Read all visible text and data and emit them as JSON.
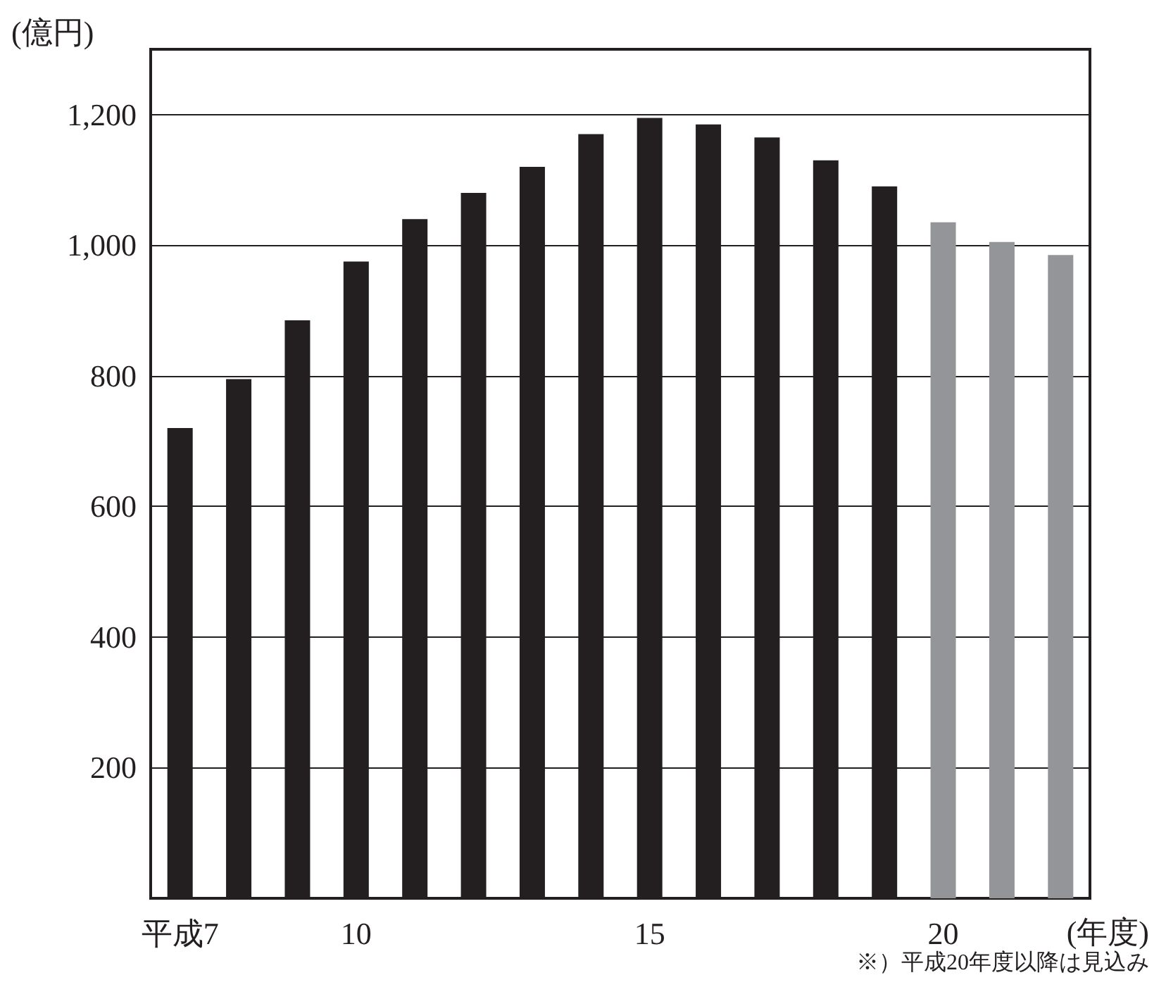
{
  "chart_data": {
    "type": "bar",
    "ylabel": "(億円)",
    "xlabel": "(年度)",
    "annotations": [
      "※）平成20年度以降は見込み"
    ],
    "categories": [
      "平成7",
      null,
      null,
      "10",
      null,
      null,
      null,
      null,
      "15",
      null,
      null,
      null,
      null,
      "20",
      null,
      null
    ],
    "values": [
      720,
      795,
      885,
      975,
      1040,
      1080,
      1120,
      1170,
      1195,
      1185,
      1165,
      1130,
      1090,
      1035,
      1005,
      985
    ],
    "colors": [
      "#231f20",
      "#231f20",
      "#231f20",
      "#231f20",
      "#231f20",
      "#231f20",
      "#231f20",
      "#231f20",
      "#231f20",
      "#231f20",
      "#231f20",
      "#231f20",
      "#231f20",
      "#939598",
      "#939598",
      "#939598"
    ],
    "ylim": [
      0,
      1300
    ],
    "yticks": [
      200,
      400,
      600,
      800,
      {
        "value": 1000,
        "label": "1,000"
      },
      {
        "value": 1200,
        "label": "1,200"
      }
    ],
    "grid": "y"
  }
}
